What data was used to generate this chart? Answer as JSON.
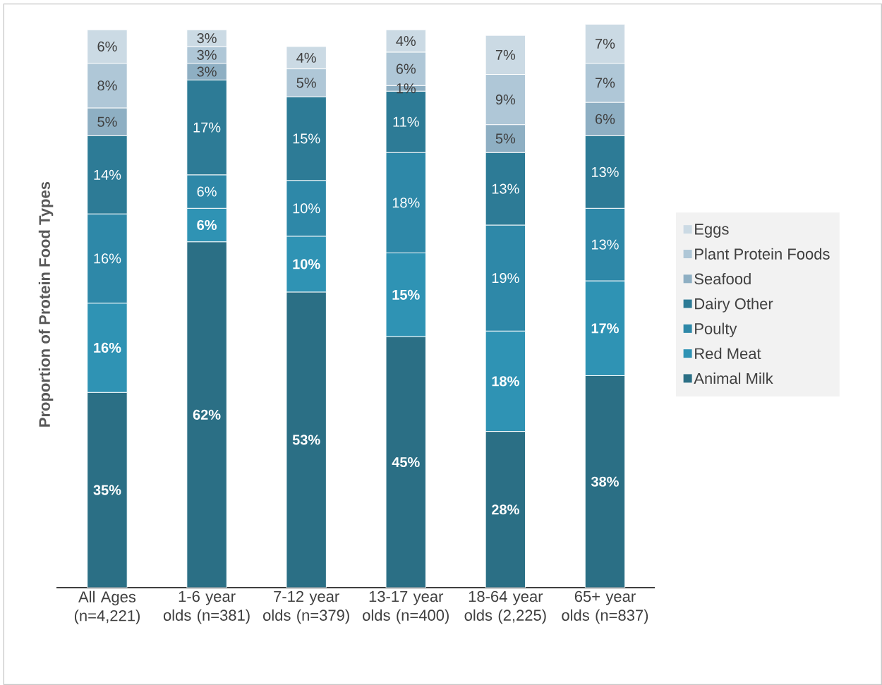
{
  "chart_data": {
    "type": "bar",
    "stacked": true,
    "ylabel": "Proportion of Protein Food Types",
    "legend": "right",
    "categories": [
      "All Ages (n=4,221)",
      "1-6 year olds (n=381)",
      "7-12 year olds (n=379)",
      "13-17 year olds (n=400)",
      "18-64 year olds (2,225)",
      "65+ year olds (n=837)"
    ],
    "series": [
      {
        "name": "Animal Milk",
        "color": "#2b6f85",
        "values": [
          35,
          62,
          53,
          45,
          28,
          38
        ],
        "value_labels": [
          "35%",
          "62%",
          "53%",
          "45%",
          "28%",
          "38%"
        ]
      },
      {
        "name": "Red Meat",
        "color": "#2f93b4",
        "values": [
          16,
          6,
          10,
          15,
          18,
          17
        ],
        "value_labels": [
          "16%",
          "6%",
          "10%",
          "15%",
          "18%",
          "17%"
        ]
      },
      {
        "name": "Poulty",
        "color": "#2e88a8",
        "values": [
          16,
          6,
          10,
          18,
          19,
          13
        ],
        "value_labels": [
          "16%",
          "6%",
          "10%",
          "18%",
          "19%",
          "13%"
        ]
      },
      {
        "name": "Dairy Other",
        "color": "#2d7b96",
        "values": [
          14,
          17,
          15,
          11,
          13,
          13
        ],
        "value_labels": [
          "14%",
          "17%",
          "15%",
          "11%",
          "13%",
          "13%"
        ]
      },
      {
        "name": "Seafood",
        "color": "#8eafc3",
        "values": [
          5,
          3,
          null,
          1,
          5,
          6
        ],
        "value_labels": [
          "5%",
          "3%",
          null,
          "1%",
          "5%",
          "6%"
        ]
      },
      {
        "name": "Plant Protein Foods",
        "color": "#afc7d7",
        "values": [
          8,
          3,
          5,
          6,
          9,
          7
        ],
        "value_labels": [
          "8%",
          "3%",
          "5%",
          "6%",
          "9%",
          "7%"
        ]
      },
      {
        "name": "Eggs",
        "color": "#cbdae4",
        "values": [
          6,
          3,
          4,
          4,
          7,
          7
        ],
        "value_labels": [
          "6%",
          "3%",
          "4%",
          "4%",
          "7%",
          "7%"
        ]
      }
    ]
  }
}
